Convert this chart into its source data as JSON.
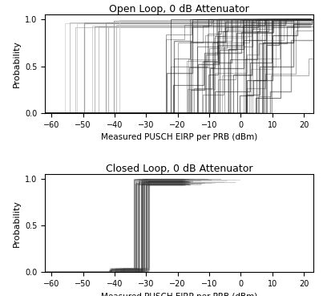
{
  "title_top": "Open Loop, 0 dB Attenuator",
  "title_bottom": "Closed Loop, 0 dB Attenuator",
  "xlabel": "Measured PUSCH EIRP per PRB (dBm)",
  "ylabel": "Probability",
  "xlim": [
    -62,
    23
  ],
  "ylim": [
    0,
    1.05
  ],
  "xticks": [
    -60,
    -50,
    -40,
    -30,
    -20,
    -10,
    0,
    10,
    20
  ],
  "yticks": [
    0.0,
    0.5,
    1.0
  ],
  "bg_color": "white",
  "figsize": [
    4.03,
    3.69
  ],
  "dpi": 100
}
